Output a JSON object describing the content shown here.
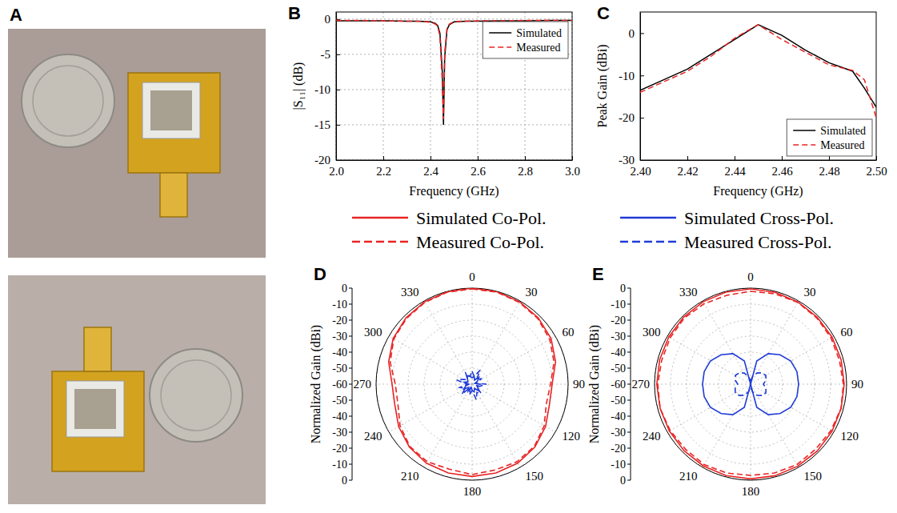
{
  "panel_labels": [
    "A",
    "B",
    "C",
    "D",
    "E"
  ],
  "chart_data": [
    {
      "type": "line",
      "x_label": "Frequency (GHz)",
      "y_label": "|S₁₁| (dB)",
      "x": [
        2.0,
        2.1,
        2.2,
        2.3,
        2.35,
        2.4,
        2.42,
        2.43,
        2.44,
        2.45,
        2.455,
        2.46,
        2.47,
        2.48,
        2.5,
        2.55,
        2.6,
        2.7,
        2.8,
        2.9,
        3.0
      ],
      "series": [
        {
          "name": "Simulated",
          "color": "#000000",
          "line_style": "solid",
          "values": [
            -0.25,
            -0.25,
            -0.25,
            -0.3,
            -0.3,
            -0.4,
            -0.6,
            -0.9,
            -2.0,
            -7.5,
            -15,
            -5.5,
            -1.5,
            -0.8,
            -0.4,
            -0.3,
            -0.3,
            -0.25,
            -0.25,
            -0.2,
            -0.2
          ]
        },
        {
          "name": "Measured",
          "color": "#e82424",
          "line_style": "dashed",
          "values": [
            -0.2,
            -0.2,
            -0.25,
            -0.3,
            -0.3,
            -0.45,
            -0.7,
            -1.0,
            -2.4,
            -9,
            -14.2,
            -4.8,
            -1.3,
            -0.7,
            -0.35,
            -0.3,
            -0.25,
            -0.25,
            -0.2,
            -0.2,
            -0.2
          ]
        }
      ],
      "xlim": [
        2.0,
        3.0
      ],
      "xticks": [
        {
          "value": 2.0,
          "label": "2.0"
        },
        {
          "value": 2.2,
          "label": "2.2"
        },
        {
          "value": 2.4,
          "label": "2.4"
        },
        {
          "value": 2.6,
          "label": "2.6"
        },
        {
          "value": 2.8,
          "label": "2.8"
        },
        {
          "value": 3.0,
          "label": "3.0"
        }
      ],
      "ylim": [
        -20,
        1
      ],
      "yticks": [
        -20,
        -15,
        -10,
        -5,
        0
      ],
      "grid": true,
      "legend": "upper right"
    },
    {
      "type": "line",
      "x_label": "Frequency (GHz)",
      "y_label": "Peak Gain (dBi)",
      "x": [
        2.4,
        2.41,
        2.42,
        2.43,
        2.44,
        2.45,
        2.46,
        2.47,
        2.48,
        2.49,
        2.495,
        2.5
      ],
      "series": [
        {
          "name": "Simulated",
          "color": "#000000",
          "line_style": "solid",
          "values": [
            -13.5,
            -11,
            -8.5,
            -5,
            -1.5,
            2,
            -0.5,
            -4,
            -7,
            -9,
            -13,
            -17.5
          ]
        },
        {
          "name": "Measured",
          "color": "#e82424",
          "line_style": "dashed",
          "values": [
            -14,
            -11.5,
            -9,
            -5.5,
            -1.2,
            2,
            -1.5,
            -4.5,
            -7.5,
            -8.8,
            -11,
            -20
          ]
        }
      ],
      "xlim": [
        2.4,
        2.5
      ],
      "xticks": [
        {
          "value": 2.4,
          "label": "2.40"
        },
        {
          "value": 2.42,
          "label": "2.42"
        },
        {
          "value": 2.44,
          "label": "2.44"
        },
        {
          "value": 2.46,
          "label": "2.46"
        },
        {
          "value": 2.48,
          "label": "2.48"
        },
        {
          "value": 2.5,
          "label": "2.50"
        }
      ],
      "ylim": [
        -30,
        5
      ],
      "yticks": [
        -30,
        -20,
        -10,
        0
      ],
      "grid": false,
      "legend": "lower right"
    },
    {
      "type": "polar",
      "y_label": "Normalized Gain (dBi)",
      "theta": [
        0,
        15,
        30,
        45,
        60,
        75,
        90,
        105,
        120,
        135,
        150,
        165,
        180,
        195,
        210,
        225,
        240,
        255,
        270,
        285,
        300,
        315,
        330,
        345
      ],
      "series": [
        {
          "name": "Simulated Co-Pol.",
          "color": "#e82424",
          "line_style": "solid",
          "values": [
            0,
            -0.2,
            -0.6,
            -1.5,
            -3,
            -6,
            -10,
            -10,
            -7,
            -4.5,
            -3,
            -2.5,
            -2.3,
            -2.5,
            -3,
            -4.5,
            -7,
            -10,
            -10,
            -6,
            -3,
            -1.5,
            -0.6,
            -0.2
          ]
        },
        {
          "name": "Simulated Cross-Pol.",
          "color": "#1f3bd8",
          "line_style": "solid",
          "values": [
            -56,
            -55,
            -57,
            -54,
            -56,
            -58,
            -55,
            -57,
            -56,
            -54,
            -57,
            -55,
            -56,
            -58,
            -55,
            -57,
            -54,
            -56,
            -58,
            -55,
            -57,
            -56,
            -54,
            -55
          ]
        },
        {
          "name": "Measured Co-Pol.",
          "color": "#e82424",
          "line_style": "dashed",
          "values": [
            -0.5,
            -0.5,
            -1,
            -2,
            -4,
            -7,
            -11,
            -12,
            -8,
            -5,
            -4,
            -4.5,
            -3.5,
            -5,
            -4,
            -5,
            -8,
            -12,
            -12,
            -7,
            -3.5,
            -2,
            -1,
            -0.5
          ]
        },
        {
          "name": "Measured Cross-Pol.",
          "color": "#1f3bd8",
          "line_style": "dashed",
          "values": [
            -52,
            -55,
            -50,
            -56,
            -53,
            -58,
            -51,
            -55,
            -57,
            -52,
            -54,
            -50,
            -56,
            -53,
            -58,
            -51,
            -55,
            -52,
            -57,
            -50,
            -54,
            -56,
            -52,
            -55
          ]
        }
      ],
      "rlim": [
        -60,
        0
      ],
      "rticks": [
        -60,
        -50,
        -40,
        -30,
        -20,
        -10,
        0
      ],
      "thetaticks": [
        0,
        30,
        60,
        90,
        120,
        150,
        180,
        210,
        240,
        270,
        300,
        330
      ],
      "grid": true,
      "legend": "top"
    },
    {
      "type": "polar",
      "y_label": "Normalized Gain (dBi)",
      "theta": [
        0,
        15,
        30,
        45,
        60,
        75,
        90,
        105,
        120,
        135,
        150,
        165,
        180,
        195,
        210,
        225,
        240,
        255,
        270,
        285,
        300,
        315,
        330,
        345
      ],
      "series": [
        {
          "color": "#e82424",
          "line_style": "solid",
          "values": [
            -0.5,
            -0.6,
            -0.8,
            -1,
            -1.2,
            -1.4,
            -1.5,
            -1.4,
            -1.2,
            -1,
            -0.9,
            -0.8,
            -0.8,
            -0.9,
            -1,
            -1.2,
            -1.4,
            -1.5,
            -1.4,
            -1.2,
            -1,
            -0.8,
            -0.6,
            -0.5
          ]
        },
        {
          "color": "#1f3bd8",
          "line_style": "solid",
          "values": [
            -60,
            -45,
            -38,
            -34,
            -31,
            -30,
            -30,
            -30,
            -31,
            -34,
            -38,
            -45,
            -60,
            -45,
            -38,
            -34,
            -31,
            -30,
            -30,
            -30,
            -31,
            -34,
            -38,
            -45
          ]
        },
        {
          "color": "#e82424",
          "line_style": "dashed",
          "values": [
            -2,
            -1.5,
            -1,
            -1.5,
            -2,
            -2.5,
            -2,
            -1.5,
            -2,
            -2.5,
            -2,
            -2.5,
            -3,
            -2.5,
            -2,
            -2.5,
            -2,
            -1.5,
            -2,
            -2.5,
            -2,
            -1.5,
            -2,
            -2.5
          ]
        },
        {
          "color": "#1f3bd8",
          "line_style": "dashed",
          "values": [
            -58,
            -55,
            -52,
            -50,
            -49,
            -50,
            -52,
            -50,
            -49,
            -50,
            -52,
            -55,
            -58,
            -55,
            -52,
            -50,
            -49,
            -50,
            -52,
            -50,
            -49,
            -50,
            -52,
            -55
          ]
        }
      ],
      "rlim": [
        -60,
        0
      ],
      "rticks": [
        -60,
        -50,
        -40,
        -30,
        -20,
        -10,
        0
      ],
      "thetaticks": [
        0,
        30,
        60,
        90,
        120,
        150,
        180,
        210,
        240,
        270,
        300,
        330
      ],
      "grid": true
    }
  ]
}
